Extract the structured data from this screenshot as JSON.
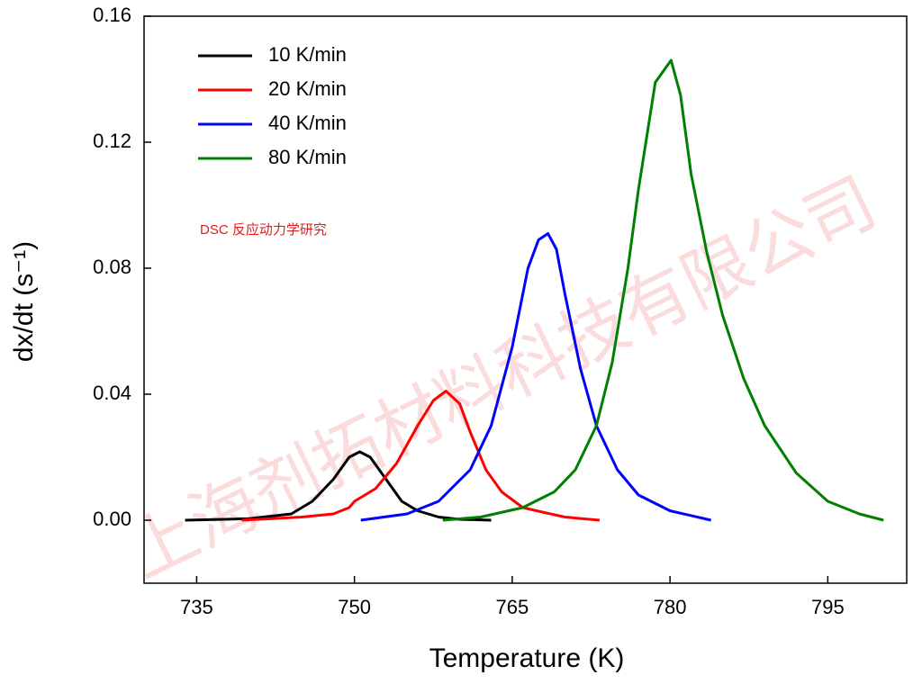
{
  "chart_data": {
    "type": "line",
    "xlabel": "Temperature (K)",
    "ylabel": "dx/dt (s⁻¹)",
    "annotation": "DSC 反应动力学研究",
    "watermark": "上海剂拓材料科技有限公司",
    "xlim": [
      730,
      802.5
    ],
    "xticks": [
      735,
      750,
      765,
      780,
      795
    ],
    "ylim": [
      -0.02,
      0.16
    ],
    "yticks": [
      {
        "value": 0,
        "label": "0.00"
      },
      {
        "value": 0.04,
        "label": "0.04"
      },
      {
        "value": 0.08,
        "label": "0.08"
      },
      {
        "value": 0.12,
        "label": "0.12"
      },
      {
        "value": 0.16,
        "label": "0.16"
      }
    ],
    "legend": "upper left",
    "series": [
      {
        "name": "10 K/min",
        "color": "#000000",
        "x": [
          733.9,
          740,
          744,
          746,
          748,
          749.5,
          750.5,
          751.5,
          753,
          754.5,
          756,
          758,
          760,
          763
        ],
        "values": [
          0,
          0.0005,
          0.002,
          0.006,
          0.013,
          0.02,
          0.0217,
          0.02,
          0.013,
          0.006,
          0.003,
          0.001,
          0.0003,
          0
        ]
      },
      {
        "name": "20 K/min",
        "color": "#ff0000",
        "x": [
          739.3,
          745,
          748,
          749.5,
          750,
          752,
          754,
          756,
          757.5,
          758.7,
          760,
          761,
          762.5,
          764,
          766,
          768,
          770,
          773.3
        ],
        "values": [
          0,
          0.001,
          0.002,
          0.004,
          0.006,
          0.01,
          0.018,
          0.03,
          0.038,
          0.041,
          0.037,
          0.028,
          0.016,
          0.009,
          0.004,
          0.0025,
          0.001,
          0
        ]
      },
      {
        "name": "40 K/min",
        "color": "#0000ff",
        "x": [
          750.6,
          755,
          758,
          761,
          763,
          765,
          766.5,
          767.5,
          768.4,
          769.2,
          770,
          771.5,
          773,
          775,
          777,
          780,
          783.9
        ],
        "values": [
          0,
          0.002,
          0.006,
          0.016,
          0.03,
          0.055,
          0.08,
          0.089,
          0.091,
          0.086,
          0.072,
          0.048,
          0.03,
          0.016,
          0.008,
          0.003,
          0
        ]
      },
      {
        "name": "80 K/min",
        "color": "#008000",
        "x": [
          758.4,
          762,
          766,
          769,
          771,
          773,
          774.5,
          776,
          777,
          778.6,
          780.1,
          781,
          782,
          783.5,
          785,
          787,
          789,
          792,
          795,
          798,
          800.3
        ],
        "values": [
          0,
          0.001,
          0.004,
          0.009,
          0.016,
          0.03,
          0.05,
          0.08,
          0.105,
          0.139,
          0.146,
          0.135,
          0.11,
          0.085,
          0.065,
          0.045,
          0.03,
          0.015,
          0.006,
          0.002,
          0
        ]
      }
    ]
  }
}
